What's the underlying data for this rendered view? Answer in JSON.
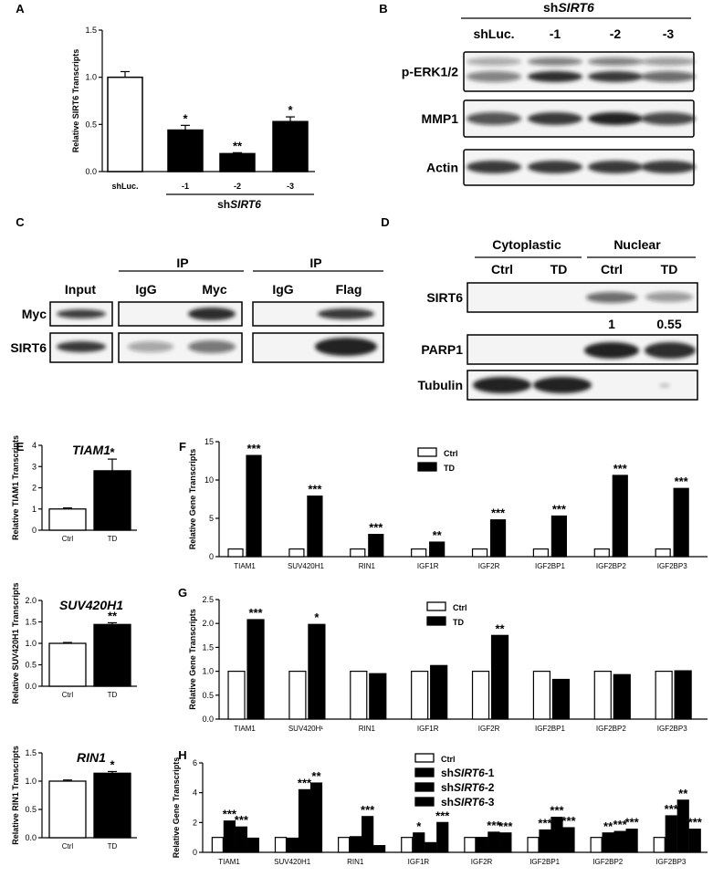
{
  "panels": [
    "A",
    "B",
    "C",
    "D",
    "E",
    "F",
    "G",
    "H"
  ],
  "panelA": {
    "chart_data": {
      "type": "bar",
      "categories": [
        "shLuc.",
        "-1",
        "-2",
        "-3"
      ],
      "values": [
        1.0,
        0.44,
        0.19,
        0.53
      ],
      "errors": [
        0.06,
        0.05,
        0.01,
        0.05
      ],
      "stars": [
        "",
        "*",
        "**",
        "*"
      ],
      "ylabel": "Relative SIRT6 Transcripts",
      "ylim": [
        0,
        1.5
      ],
      "yticks": [
        "0.0",
        "0.5",
        "1.0",
        "1.5"
      ],
      "group_label": "shSIRT6",
      "fills": [
        "#ffffff",
        "#000000",
        "#000000",
        "#000000"
      ]
    }
  },
  "panelB": {
    "header_group": "shSIRT6",
    "lanes": [
      "shLuc.",
      "-1",
      "-2",
      "-3"
    ],
    "rows": [
      "p-ERK1/2",
      "MMP1",
      "Actin"
    ]
  },
  "panelC": {
    "input_label": "Input",
    "ip_label": "IP",
    "ip1": [
      "IgG",
      "Myc"
    ],
    "ip2": [
      "IgG",
      "Flag"
    ],
    "rows": [
      "Myc",
      "SIRT6"
    ]
  },
  "panelD": {
    "groups": [
      "Cytoplastic",
      "Nuclear"
    ],
    "lanes": [
      "Ctrl",
      "TD",
      "Ctrl",
      "TD"
    ],
    "rows": [
      "SIRT6",
      "PARP1",
      "Tubulin"
    ],
    "quant": [
      "1",
      "0.55"
    ]
  },
  "panelE": [
    {
      "chart_data": {
        "type": "bar",
        "title": "TIAM1",
        "categories": [
          "Ctrl",
          "TD"
        ],
        "values": [
          1.0,
          2.8
        ],
        "errors": [
          0.05,
          0.55
        ],
        "stars": [
          "",
          "*"
        ],
        "ylabel": "Relative TIAM1 Transcripts",
        "ylim": [
          0,
          4
        ],
        "yticks": [
          "0",
          "1",
          "2",
          "3",
          "4"
        ]
      }
    },
    {
      "chart_data": {
        "type": "bar",
        "title": "SUV420H1",
        "categories": [
          "Ctrl",
          "TD"
        ],
        "values": [
          1.0,
          1.44
        ],
        "errors": [
          0.02,
          0.04
        ],
        "stars": [
          "",
          "**"
        ],
        "ylabel": "Relative SUV420H1 Transcripts",
        "ylim": [
          0,
          2.0
        ],
        "yticks": [
          "0.0",
          "0.5",
          "1.0",
          "1.5",
          "2.0"
        ]
      }
    },
    {
      "chart_data": {
        "type": "bar",
        "title": "RIN1",
        "categories": [
          "Ctrl",
          "TD"
        ],
        "values": [
          1.0,
          1.14
        ],
        "errors": [
          0.02,
          0.03
        ],
        "stars": [
          "",
          "*"
        ],
        "ylabel": "Relative RIN1 Transcripts",
        "ylim": [
          0,
          1.5
        ],
        "yticks": [
          "0.0",
          "0.5",
          "1.0",
          "1.5"
        ]
      }
    }
  ],
  "panelF": {
    "chart_data": {
      "type": "bar",
      "categories": [
        "TIAM1",
        "SUV420H1",
        "RIN1",
        "IGF1R",
        "IGF2R",
        "IGF2BP1",
        "IGF2BP2",
        "IGF2BP3"
      ],
      "series": [
        {
          "name": "Ctrl",
          "values": [
            1,
            1,
            1,
            1,
            1,
            1,
            1,
            1
          ]
        },
        {
          "name": "TD",
          "values": [
            13.2,
            7.9,
            2.9,
            1.9,
            4.8,
            5.3,
            10.6,
            8.9
          ]
        }
      ],
      "stars": [
        "***",
        "***",
        "***",
        "**",
        "***",
        "***",
        "***",
        "***"
      ],
      "ylabel": "Relative Gene Transcripts",
      "ylim": [
        0,
        15
      ],
      "yticks": [
        "0",
        "5",
        "10",
        "15"
      ]
    }
  },
  "panelG": {
    "chart_data": {
      "type": "bar",
      "categories": [
        "TIAM1",
        "SUV420H¹",
        "RIN1",
        "IGF1R",
        "IGF2R",
        "IGF2BP1",
        "IGF2BP2",
        "IGF2BP3"
      ],
      "series": [
        {
          "name": "Ctrl",
          "values": [
            1,
            1,
            1,
            1,
            1,
            1,
            1,
            1
          ]
        },
        {
          "name": "TD",
          "values": [
            2.08,
            1.98,
            0.95,
            1.12,
            1.75,
            0.83,
            0.93,
            1.01
          ]
        }
      ],
      "stars": [
        "***",
        "*",
        "",
        "",
        "**",
        "",
        "",
        ""
      ],
      "ylabel": "Relative Gene Transcripts",
      "ylim": [
        0,
        2.5
      ],
      "yticks": [
        "0.0",
        "0.5",
        "1.0",
        "1.5",
        "2.0",
        "2.5"
      ]
    }
  },
  "panelH": {
    "chart_data": {
      "type": "bar",
      "categories": [
        "TIAM1",
        "SUV420H1",
        "RIN1",
        "IGF1R",
        "IGF2R",
        "IGF2BP1",
        "IGF2BP2",
        "IGF2BP3"
      ],
      "series": [
        {
          "name": "Ctrl",
          "values": [
            1,
            1,
            1,
            1,
            1,
            1,
            1,
            1
          ]
        },
        {
          "name": "shSIRT6-1",
          "values": [
            2.1,
            0.95,
            1.05,
            1.3,
            1.0,
            1.5,
            1.3,
            2.45
          ]
        },
        {
          "name": "shSIRT6-2",
          "values": [
            1.7,
            4.2,
            2.4,
            0.65,
            1.35,
            2.35,
            1.4,
            3.5
          ]
        },
        {
          "name": "shSIRT6-3",
          "values": [
            0.95,
            4.65,
            0.45,
            2.0,
            1.3,
            1.65,
            1.55,
            1.55
          ]
        }
      ],
      "stars": [
        [
          "",
          "***",
          "***",
          ""
        ],
        [
          "",
          "",
          "***",
          "**"
        ],
        [
          "",
          "",
          "***",
          ""
        ],
        [
          "",
          "*",
          "",
          "***"
        ],
        [
          "",
          "",
          "***",
          "***"
        ],
        [
          "",
          "***",
          "***",
          "***"
        ],
        [
          "",
          "**",
          "***",
          "***"
        ],
        [
          "",
          "***",
          "**",
          "***"
        ]
      ],
      "ylabel": "Relative Gene Transcripts",
      "ylim": [
        0,
        6
      ],
      "yticks": [
        "0",
        "2",
        "4",
        "6"
      ]
    }
  }
}
